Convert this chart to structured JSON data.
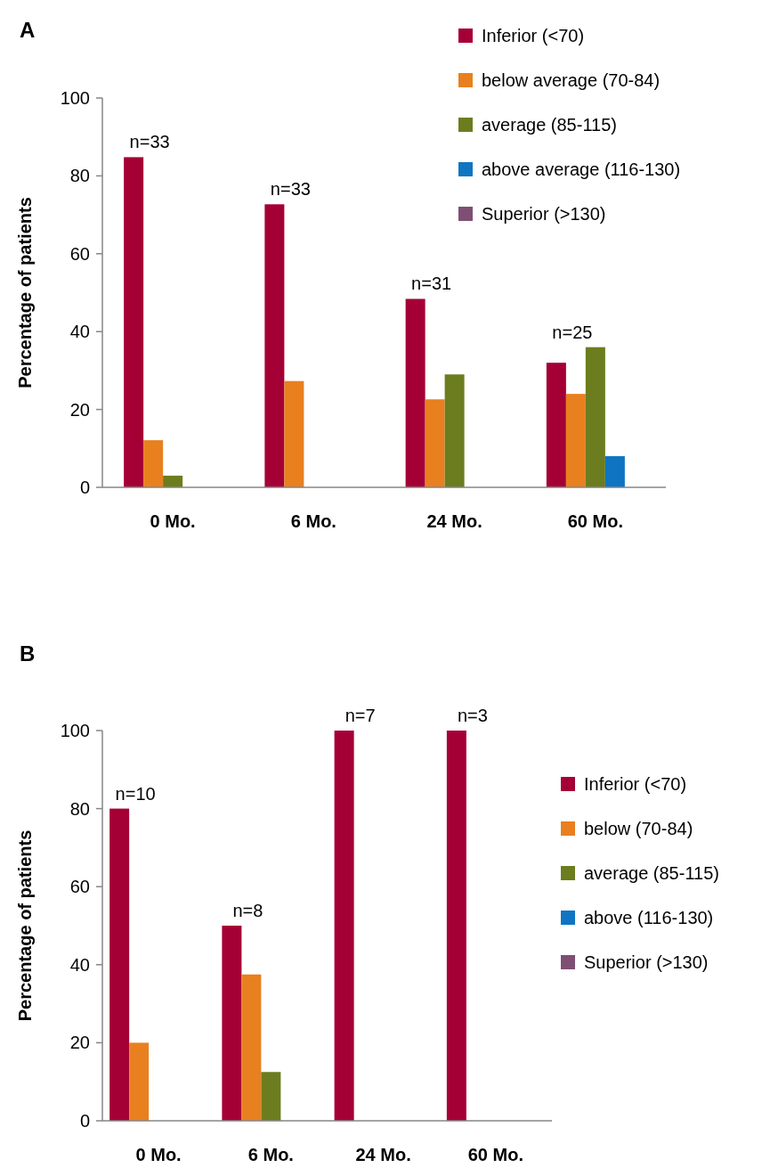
{
  "chart_data": [
    {
      "type": "bar",
      "title": "A",
      "ylabel": "Percentage of patients",
      "categories": [
        "0 Mo.",
        "6 Mo.",
        "24 Mo.",
        "60 Mo."
      ],
      "ylim": [
        0,
        100
      ],
      "yticks": [
        0,
        20,
        40,
        60,
        80,
        100
      ],
      "grid": false,
      "legend": "top right",
      "series": [
        {
          "name": "Inferior (<70)",
          "color": "#a50036",
          "values": [
            84.8,
            72.7,
            48.4,
            32
          ]
        },
        {
          "name": "below average (70-84)",
          "color": "#e8801f",
          "values": [
            12.1,
            27.3,
            22.6,
            24
          ]
        },
        {
          "name": "average (85-115)",
          "color": "#6b7d1f",
          "values": [
            3,
            0,
            29,
            36
          ]
        },
        {
          "name": "above average (116-130)",
          "color": "#0f75c2",
          "values": [
            0,
            0,
            0,
            8
          ]
        },
        {
          "name": "Superior (>130)",
          "color": "#7f4f73",
          "values": [
            0,
            0,
            0,
            0
          ]
        }
      ],
      "annotations": [
        "n=33",
        "n=33",
        "n=31",
        "n=25"
      ]
    },
    {
      "type": "bar",
      "title": "B",
      "ylabel": "Percentage of patients",
      "categories": [
        "0 Mo.",
        "6 Mo.",
        "24 Mo.",
        "60 Mo."
      ],
      "ylim": [
        0,
        100
      ],
      "yticks": [
        0,
        20,
        40,
        60,
        80,
        100
      ],
      "grid": false,
      "legend": "right",
      "series": [
        {
          "name": "Inferior (<70)",
          "color": "#a50036",
          "values": [
            80,
            50,
            100,
            100
          ]
        },
        {
          "name": "below (70-84)",
          "color": "#e8801f",
          "values": [
            20,
            37.5,
            0,
            0
          ]
        },
        {
          "name": "average (85-115)",
          "color": "#6b7d1f",
          "values": [
            0,
            12.5,
            0,
            0
          ]
        },
        {
          "name": "above (116-130)",
          "color": "#0f75c2",
          "values": [
            0,
            0,
            0,
            0
          ]
        },
        {
          "name": "Superior (>130)",
          "color": "#7f4f73",
          "values": [
            0,
            0,
            0,
            0
          ]
        }
      ],
      "annotations": [
        "n=10",
        "n=8",
        "n=7",
        "n=3"
      ]
    }
  ]
}
